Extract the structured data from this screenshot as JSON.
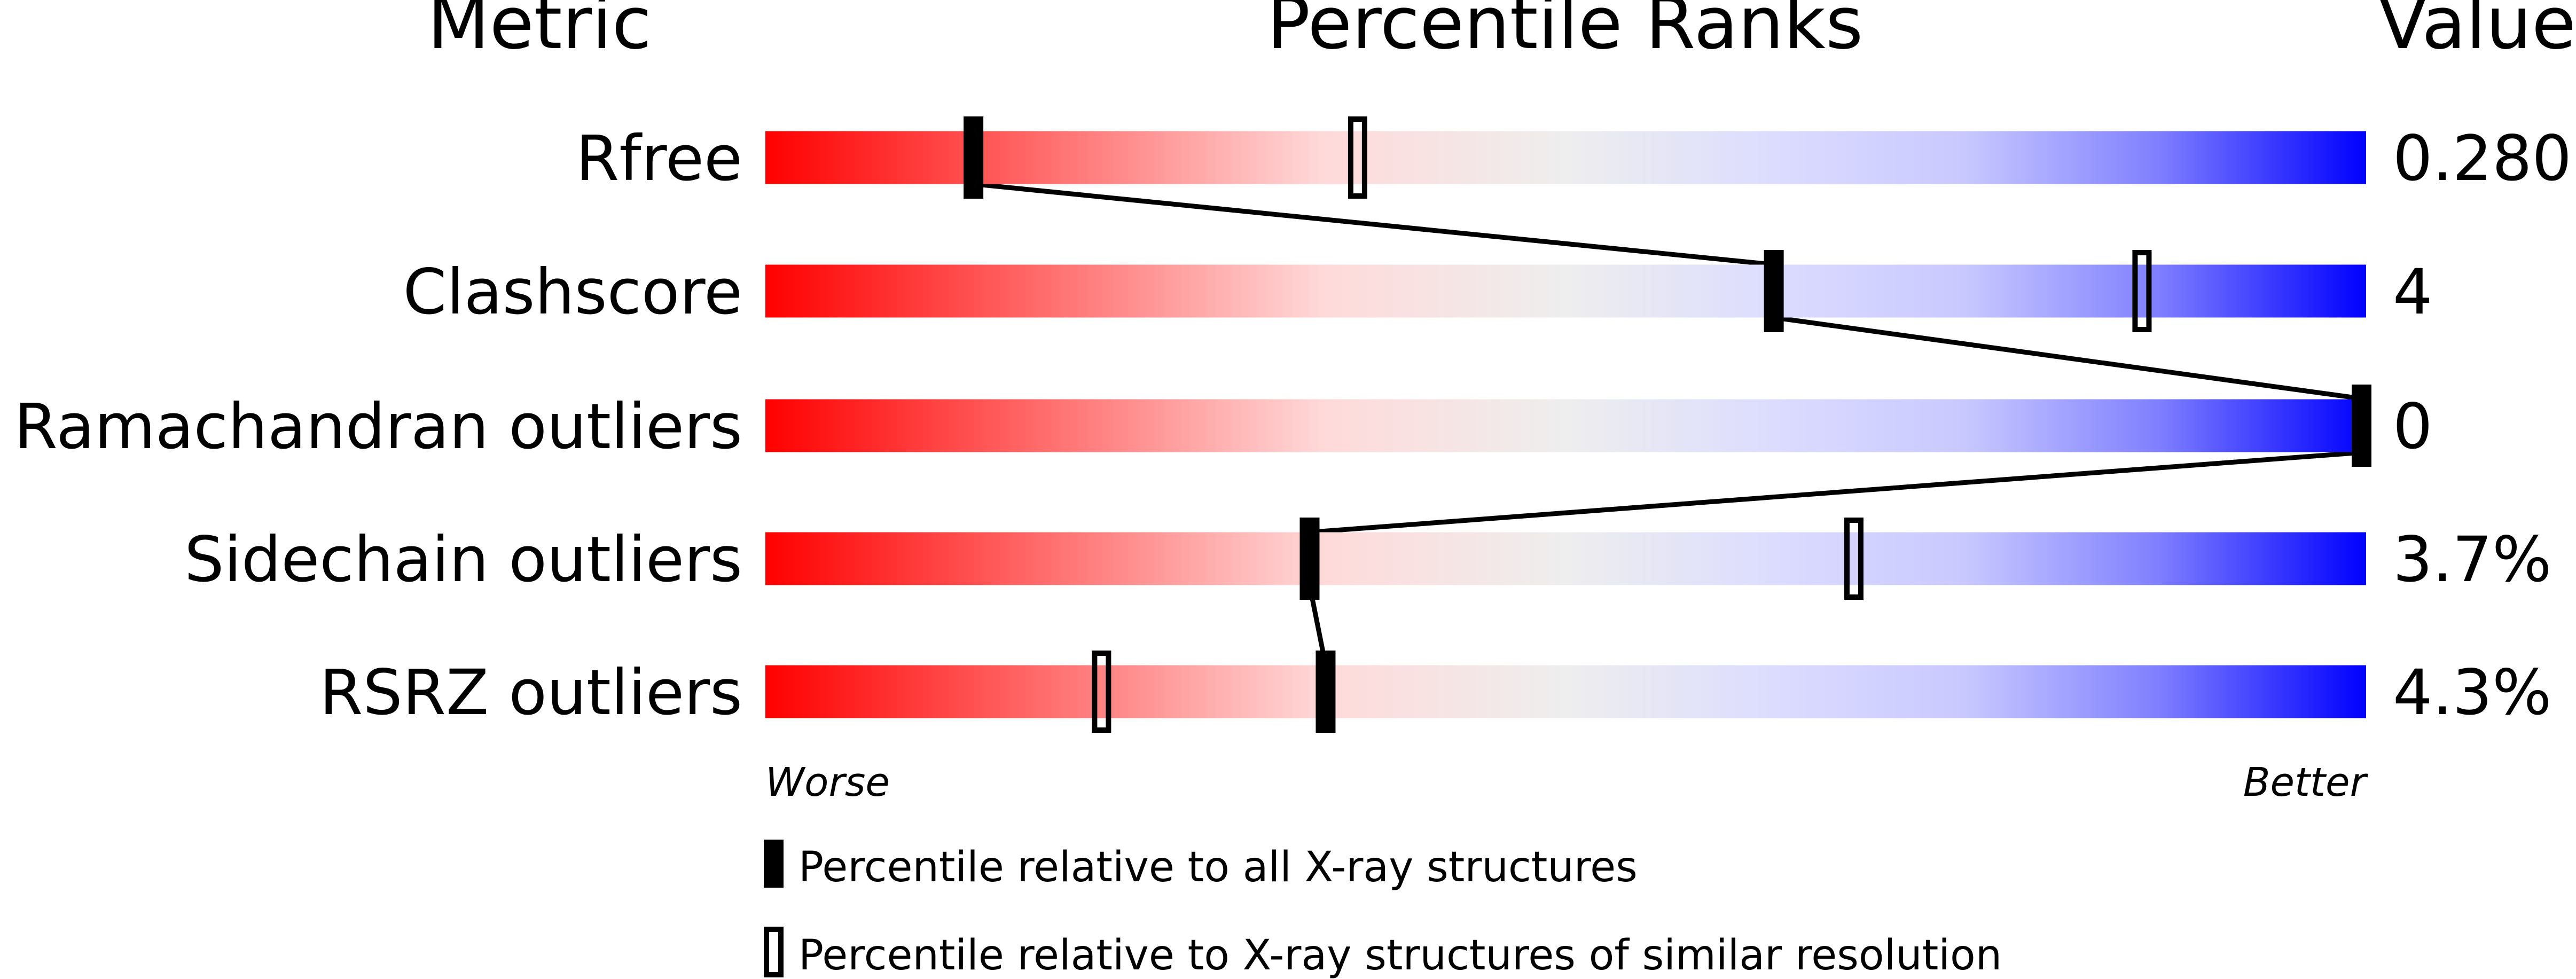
{
  "headers": {
    "metric": "Metric",
    "percentile": "Percentile Ranks",
    "value": "Value"
  },
  "axis": {
    "worse": "Worse",
    "better": "Better"
  },
  "legend": {
    "filled": "Percentile relative to all X-ray structures",
    "open": "Percentile relative to X-ray structures of similar resolution"
  },
  "colors": {
    "worse": "#ff0000",
    "neutral": "#eeeeee",
    "better": "#0000ff",
    "marker": "#000000"
  },
  "chart_data": {
    "type": "percentile-slider",
    "xlim": [
      0,
      100
    ],
    "rows": [
      {
        "metric": "Rfree",
        "value": "0.280",
        "percentile_all": 13,
        "percentile_similar": 37
      },
      {
        "metric": "Clashscore",
        "value": "4",
        "percentile_all": 63,
        "percentile_similar": 86
      },
      {
        "metric": "Ramachandran outliers",
        "value": "0",
        "percentile_all": 100,
        "percentile_similar": null
      },
      {
        "metric": "Sidechain outliers",
        "value": "3.7%",
        "percentile_all": 34,
        "percentile_similar": 68
      },
      {
        "metric": "RSRZ outliers",
        "value": "4.3%",
        "percentile_all": 35,
        "percentile_similar": 21
      }
    ]
  }
}
